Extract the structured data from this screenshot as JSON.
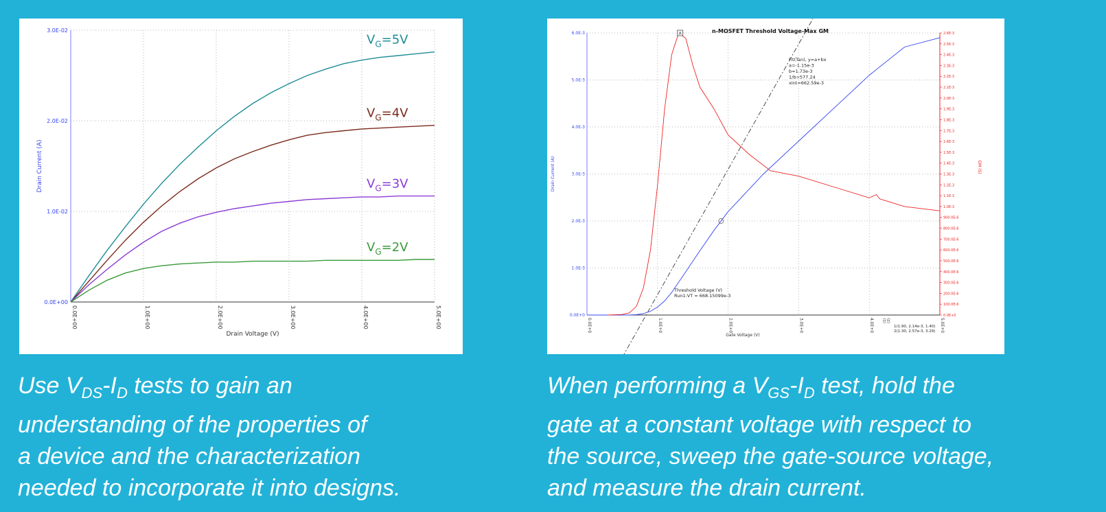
{
  "colors": {
    "background": "#22b2d8",
    "vg5": "#1e8c96",
    "vg4": "#7a2a1c",
    "vg3": "#8a3bd6",
    "vg2": "#3a9a3a",
    "blue": "#3344ee",
    "red": "#ee2222"
  },
  "chart_data": [
    {
      "type": "line",
      "xlabel": "Drain Voltage (V)",
      "ylabel": "Drain Current (A)",
      "xlim": [
        0,
        5
      ],
      "ylim": [
        0,
        0.03
      ],
      "x_ticks": [
        0,
        1,
        2,
        3,
        4,
        5
      ],
      "y_ticks": [
        0,
        0.01,
        0.02,
        0.03
      ],
      "x_tick_labels": [
        "0.0E+00",
        "1.0E+00",
        "2.0E+00",
        "3.0E+00",
        "4.0E+00",
        "5.0E+00"
      ],
      "y_tick_labels": [
        "0.0E+00",
        "1.0E-02",
        "2.0E-02",
        "3.0E-02"
      ],
      "grid": true,
      "x": [
        0,
        0.25,
        0.5,
        0.75,
        1,
        1.25,
        1.5,
        1.75,
        2,
        2.25,
        2.5,
        2.75,
        3,
        3.25,
        3.5,
        3.75,
        4,
        4.25,
        4.5,
        4.75,
        5
      ],
      "series": [
        {
          "name": "VG=5V",
          "label_main": "V",
          "label_sub": "G",
          "label_rest": "=5V",
          "color": "#1e8c96",
          "values": [
            0,
            0.0029,
            0.0057,
            0.0083,
            0.0108,
            0.0131,
            0.0152,
            0.0171,
            0.0189,
            0.0205,
            0.0219,
            0.0231,
            0.0241,
            0.025,
            0.0257,
            0.0263,
            0.0267,
            0.027,
            0.0272,
            0.0274,
            0.0276
          ]
        },
        {
          "name": "VG=4V",
          "label_main": "V",
          "label_sub": "G",
          "label_rest": "=4V",
          "color": "#7a2a1c",
          "values": [
            0,
            0.0023,
            0.0046,
            0.0068,
            0.0088,
            0.0106,
            0.0122,
            0.0136,
            0.0148,
            0.0158,
            0.0166,
            0.0173,
            0.0179,
            0.0184,
            0.0187,
            0.0189,
            0.0191,
            0.0192,
            0.0193,
            0.0194,
            0.0195
          ]
        },
        {
          "name": "VG=3V",
          "label_main": "V",
          "label_sub": "G",
          "label_rest": "=3V",
          "color": "#8a3bd6",
          "values": [
            0,
            0.0019,
            0.0036,
            0.0052,
            0.0066,
            0.0078,
            0.0087,
            0.0094,
            0.0099,
            0.0103,
            0.0106,
            0.0109,
            0.0111,
            0.0113,
            0.0114,
            0.0115,
            0.0116,
            0.0116,
            0.0117,
            0.0117,
            0.0117
          ]
        },
        {
          "name": "VG=2V",
          "label_main": "V",
          "label_sub": "G",
          "label_rest": "=2V",
          "color": "#3a9a3a",
          "values": [
            0,
            0.0013,
            0.0024,
            0.0032,
            0.0037,
            0.004,
            0.0042,
            0.0043,
            0.0044,
            0.0044,
            0.0045,
            0.0045,
            0.0045,
            0.0045,
            0.0046,
            0.0046,
            0.0046,
            0.0046,
            0.0046,
            0.0047,
            0.0047
          ]
        }
      ]
    },
    {
      "type": "line",
      "title": "n-MOSFET Threshold Voltage-Max GM",
      "xlabel": "Gate Voltage (V)",
      "ylabel": "Drain Current (A)",
      "y2label": "GM (S)",
      "xlim": [
        0,
        5
      ],
      "ylim": [
        0,
        0.006
      ],
      "y2lim": [
        0,
        0.0026
      ],
      "x_ticks": [
        0,
        1,
        2,
        3,
        4,
        5
      ],
      "y_ticks": [
        0,
        0.001,
        0.002,
        0.003,
        0.004,
        0.005,
        0.006
      ],
      "x_tick_labels": [
        "0.0E+0",
        "1.0E+0",
        "2.0E+0",
        "3.0E+0",
        "4.0E+0",
        "5.0E+0"
      ],
      "y_tick_labels": [
        "0.0E+0",
        "1.0E-3",
        "2.0E-3",
        "3.0E-3",
        "4.0E-3",
        "5.0E-3",
        "6.0E-3"
      ],
      "y2_tick_labels": [
        "0.0E+0",
        "100.0E-6",
        "200.0E-6",
        "300.0E-6",
        "400.0E-6",
        "500.0E-6",
        "600.0E-6",
        "700.0E-6",
        "800.0E-6",
        "900.0E-6",
        "1.0E-3",
        "1.1E-3",
        "1.2E-3",
        "1.3E-3",
        "1.4E-3",
        "1.5E-3",
        "1.6E-3",
        "1.7E-3",
        "1.8E-3",
        "1.9E-3",
        "2.0E-3",
        "2.1E-3",
        "2.2E-3",
        "2.3E-3",
        "2.4E-3",
        "2.5E-3",
        "2.6E-3"
      ],
      "grid": true,
      "series": [
        {
          "name": "Drain Current",
          "axis": "left",
          "color": "#3344ee",
          "x": [
            0,
            0.5,
            0.6,
            0.7,
            0.8,
            0.9,
            1,
            1.1,
            1.2,
            1.3,
            1.4,
            1.6,
            1.8,
            2,
            2.5,
            3,
            3.5,
            4,
            4.5,
            5
          ],
          "values": [
            0,
            0,
            2e-06,
            8e-06,
            3e-05,
            8e-05,
            0.00017,
            0.0003,
            0.00048,
            0.0007,
            0.00092,
            0.00137,
            0.0018,
            0.0022,
            0.003,
            0.0037,
            0.0044,
            0.0051,
            0.0057,
            0.0059
          ]
        },
        {
          "name": "GM",
          "axis": "right",
          "color": "#ee2222",
          "x": [
            0.3,
            0.5,
            0.6,
            0.7,
            0.8,
            0.9,
            1,
            1.1,
            1.2,
            1.3,
            1.4,
            1.5,
            1.6,
            1.8,
            2,
            2.3,
            2.6,
            3,
            3.5,
            4,
            4.1,
            4.15,
            4.2,
            4.5,
            5
          ],
          "values": [
            0,
            5e-06,
            2e-05,
            8e-05,
            0.00025,
            0.0006,
            0.0012,
            0.0019,
            0.0024,
            0.0026,
            0.00255,
            0.0023,
            0.0021,
            0.0019,
            0.00166,
            0.00148,
            0.00133,
            0.00128,
            0.00118,
            0.00108,
            0.00111,
            0.00107,
            0.00106,
            0.001,
            0.00096
          ]
        }
      ],
      "tangent": {
        "x0": 0.5,
        "y0": -0.0009,
        "x1": 3.2,
        "y1": 0.0063
      },
      "fit_text": [
        "Fit(Tan), y=a+bx",
        "a=-1.15e-3",
        "b=1.73e-3",
        "1/b=577.24",
        "xint=662.59e-3"
      ],
      "annotation": [
        "Threshold Voltage (V)",
        "Run1:VT = 668.15099e-3"
      ],
      "marker_label": "A",
      "marker_a_x": 1.32,
      "marker_b_x": 1.9,
      "cursor_text": [
        "1(1.90, 2.14e-3, 1.40)",
        "2(1.30, 2.57e-3, 3.29)"
      ],
      "cursor_prefix": [
        "(1)",
        "(2)"
      ]
    }
  ],
  "captions": {
    "left": {
      "line1_pre": "Use V",
      "line1_sub1": "DS",
      "line1_mid": "-I",
      "line1_sub2": "D",
      "line1_post": " tests to gain an",
      "line2": "understanding of the properties of",
      "line3": "a device and the characterization",
      "line4": "needed to incorporate it into designs."
    },
    "right": {
      "line1_pre": "When performing a V",
      "line1_sub1": "GS",
      "line1_mid": "-I",
      "line1_sub2": "D",
      "line1_post": " test, hold the",
      "line2": "gate at a constant voltage with respect to",
      "line3": "the source, sweep the gate-source voltage,",
      "line4": "and measure the drain current."
    }
  }
}
